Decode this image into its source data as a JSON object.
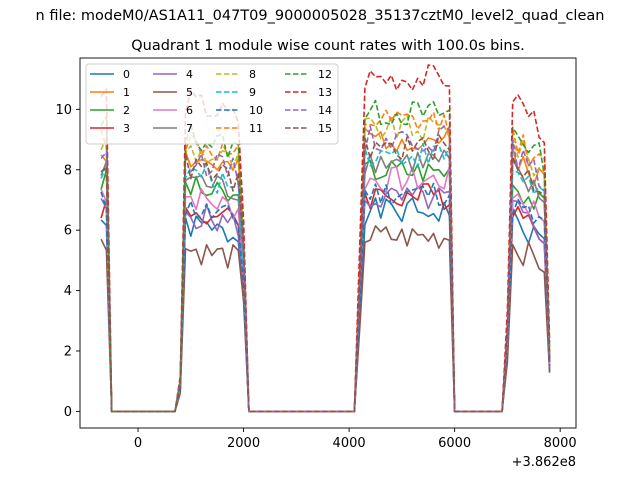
{
  "chart_data": {
    "type": "line",
    "suptitle": "n file: modeM0/AS1A11_047T09_9000005028_35137cztM0_level2_quad_clean",
    "title": "Quadrant 1 module wise count rates with 100.0s bins.",
    "xlabel": "",
    "ylabel": "",
    "x_offset_label": "+3.862e8",
    "xlim": [
      -1100,
      8300
    ],
    "ylim": [
      -0.55,
      11.7
    ],
    "xticks": [
      0,
      2000,
      4000,
      6000,
      8000
    ],
    "xtick_labels": [
      "0",
      "2000",
      "4000",
      "6000",
      "8000"
    ],
    "yticks": [
      0,
      2,
      4,
      6,
      8,
      10
    ],
    "ytick_labels": [
      "0",
      "2",
      "4",
      "6",
      "8",
      "10"
    ],
    "grid": false,
    "legend_placement": "top-left",
    "x": [
      -700,
      -600,
      -500,
      -400,
      -300,
      -200,
      -100,
      0,
      100,
      200,
      300,
      400,
      500,
      600,
      700,
      800,
      900,
      1000,
      1100,
      1200,
      1300,
      1400,
      1500,
      1600,
      1700,
      1800,
      1900,
      2000,
      2100,
      2200,
      2300,
      2400,
      2500,
      2600,
      2700,
      2800,
      2900,
      3000,
      3100,
      3200,
      3300,
      3400,
      3500,
      3600,
      3700,
      3800,
      3900,
      4000,
      4100,
      4200,
      4300,
      4400,
      4500,
      4600,
      4700,
      4800,
      4900,
      5000,
      5100,
      5200,
      5300,
      5400,
      5500,
      5600,
      5700,
      5800,
      5900,
      6000,
      6100,
      6200,
      6300,
      6400,
      6500,
      6600,
      6700,
      6800,
      6900,
      7000,
      7100,
      7200,
      7300,
      7400,
      7500,
      7600,
      7700,
      7800
    ],
    "series": [
      {
        "name": "0",
        "color": "#1f77b4",
        "style": "solid",
        "base": 6.3,
        "seed": 1
      },
      {
        "name": "1",
        "color": "#ff7f0e",
        "style": "solid",
        "base": 8.6,
        "seed": 2
      },
      {
        "name": "2",
        "color": "#2ca02c",
        "style": "solid",
        "base": 7.6,
        "seed": 3
      },
      {
        "name": "3",
        "color": "#d62728",
        "style": "solid",
        "base": 6.8,
        "seed": 4
      },
      {
        "name": "4",
        "color": "#9467bd",
        "style": "solid",
        "base": 6.7,
        "seed": 5
      },
      {
        "name": "5",
        "color": "#8c564b",
        "style": "solid",
        "base": 5.5,
        "seed": 6
      },
      {
        "name": "6",
        "color": "#e377c2",
        "style": "solid",
        "base": 7.3,
        "seed": 7
      },
      {
        "name": "7",
        "color": "#7f7f7f",
        "style": "solid",
        "base": 7.9,
        "seed": 8
      },
      {
        "name": "8",
        "color": "#bcbd22",
        "style": "dashed",
        "base": 8.9,
        "seed": 9
      },
      {
        "name": "9",
        "color": "#17becf",
        "style": "dashed",
        "base": 8.1,
        "seed": 10
      },
      {
        "name": "10",
        "color": "#1f77b4",
        "style": "dashed",
        "base": 6.9,
        "seed": 11
      },
      {
        "name": "11",
        "color": "#ff7f0e",
        "style": "dashed",
        "base": 9.1,
        "seed": 12
      },
      {
        "name": "12",
        "color": "#2ca02c",
        "style": "dashed",
        "base": 9.4,
        "seed": 13
      },
      {
        "name": "13",
        "color": "#d62728",
        "style": "dashed",
        "base": 10.5,
        "seed": 14
      },
      {
        "name": "14",
        "color": "#9467bd",
        "style": "dashed",
        "base": 8.6,
        "seed": 15
      },
      {
        "name": "15",
        "color": "#8c564b",
        "style": "dashed",
        "base": 8.3,
        "seed": 16
      }
    ]
  }
}
